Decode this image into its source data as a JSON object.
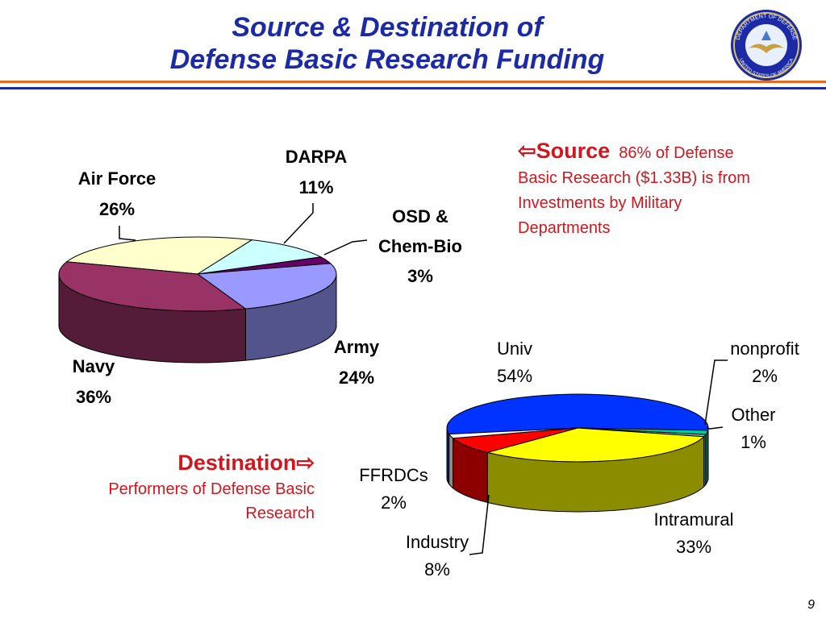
{
  "slide": {
    "title_line1": "Source & Destination of",
    "title_line2": "Defense Basic Research Funding",
    "page_number": "9",
    "seal": {
      "top_text": "DEPARTMENT OF DEFENSE",
      "bottom_text": "UNITED STATES OF AMERICA"
    },
    "source_note": {
      "arrow": "⇦",
      "heading": "Source",
      "lead": "86% of",
      "body": "Defense Basic Research ($1.33B) is from Investments by Military Departments"
    },
    "destination_note": {
      "heading": "Destination",
      "arrow": "⇨",
      "body": "Performers of Defense Basic Research"
    }
  },
  "colors": {
    "title": "#1c2aa6",
    "accent_red": "#d2161e",
    "rule_orange": "#e86a1f",
    "rule_blue": "#1c2aa6"
  },
  "chart_data": [
    {
      "type": "pie",
      "title": "",
      "labels": [
        "Air Force",
        "DARPA",
        "OSD & Chem-Bio",
        "Army",
        "Navy"
      ],
      "values": [
        26,
        11,
        3,
        24,
        36
      ],
      "value_labels": [
        "26%",
        "11%",
        "3%",
        "24%",
        "36%"
      ],
      "colors": [
        "#ffffcc",
        "#ccffff",
        "#660066",
        "#9999ff",
        "#993366"
      ],
      "style": "3d"
    },
    {
      "type": "pie",
      "title": "",
      "labels": [
        "Univ",
        "nonprofit",
        "Other",
        "Intramural",
        "Industry",
        "FFRDCs"
      ],
      "values": [
        54,
        2,
        1,
        33,
        8,
        2
      ],
      "value_labels": [
        "54%",
        "2%",
        "1%",
        "33%",
        "8%",
        "2%"
      ],
      "colors": [
        "#0033ff",
        "#00cc99",
        "#66cccc",
        "#ffff00",
        "#ff0000",
        "#ffffff"
      ],
      "style": "3d"
    }
  ]
}
